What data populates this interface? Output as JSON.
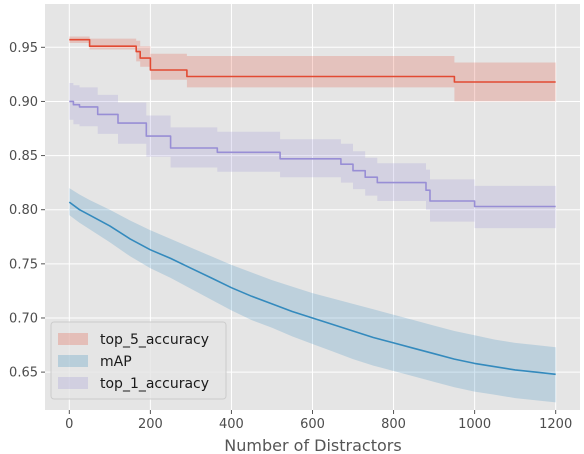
{
  "chart_data": {
    "type": "line",
    "title": "",
    "xlabel": "Number of Distractors",
    "ylabel": "",
    "xlim": [
      -60,
      1260
    ],
    "ylim": [
      0.615,
      0.99
    ],
    "x_ticks": [
      0,
      200,
      400,
      600,
      800,
      1000,
      1200
    ],
    "y_ticks": [
      0.65,
      0.7,
      0.75,
      0.8,
      0.85,
      0.9,
      0.95
    ],
    "x_tick_labels": [
      "0",
      "200",
      "400",
      "600",
      "800",
      "1000",
      "1200"
    ],
    "y_tick_labels": [
      "0.65",
      "0.70",
      "0.75",
      "0.80",
      "0.85",
      "0.90",
      "0.95"
    ],
    "grid": true,
    "legend_position": "lower-left",
    "series": [
      {
        "name": "top_5_accuracy",
        "color": "#e24a33",
        "step": true,
        "x": [
          0,
          50,
          165,
          175,
          200,
          290,
          950,
          1200
        ],
        "values": [
          0.957,
          0.951,
          0.946,
          0.94,
          0.929,
          0.923,
          0.918,
          0.918
        ],
        "lower": [
          0.954,
          0.948,
          0.937,
          0.932,
          0.92,
          0.913,
          0.9,
          0.9
        ],
        "upper": [
          0.96,
          0.958,
          0.956,
          0.951,
          0.944,
          0.942,
          0.936,
          0.936
        ]
      },
      {
        "name": "mAP",
        "color": "#348abd",
        "step": false,
        "x": [
          0,
          25,
          50,
          100,
          150,
          200,
          250,
          300,
          350,
          400,
          450,
          500,
          550,
          600,
          650,
          700,
          750,
          800,
          850,
          900,
          950,
          1000,
          1050,
          1100,
          1150,
          1200
        ],
        "values": [
          0.807,
          0.8,
          0.795,
          0.785,
          0.773,
          0.763,
          0.755,
          0.746,
          0.737,
          0.728,
          0.72,
          0.713,
          0.706,
          0.7,
          0.694,
          0.688,
          0.682,
          0.677,
          0.672,
          0.667,
          0.662,
          0.658,
          0.655,
          0.652,
          0.65,
          0.648
        ],
        "lower": [
          0.795,
          0.788,
          0.782,
          0.77,
          0.757,
          0.746,
          0.737,
          0.727,
          0.717,
          0.707,
          0.698,
          0.691,
          0.683,
          0.676,
          0.669,
          0.662,
          0.656,
          0.651,
          0.646,
          0.641,
          0.636,
          0.632,
          0.629,
          0.626,
          0.624,
          0.622
        ],
        "upper": [
          0.82,
          0.814,
          0.809,
          0.8,
          0.79,
          0.781,
          0.773,
          0.765,
          0.757,
          0.749,
          0.742,
          0.735,
          0.729,
          0.723,
          0.718,
          0.713,
          0.708,
          0.703,
          0.698,
          0.693,
          0.688,
          0.684,
          0.68,
          0.677,
          0.675,
          0.673
        ]
      },
      {
        "name": "top_1_accuracy",
        "color": "#988ed5",
        "step": true,
        "x": [
          0,
          10,
          25,
          70,
          120,
          190,
          250,
          365,
          520,
          670,
          700,
          730,
          760,
          880,
          890,
          1000,
          1200
        ],
        "values": [
          0.9,
          0.897,
          0.895,
          0.888,
          0.88,
          0.868,
          0.857,
          0.853,
          0.847,
          0.842,
          0.836,
          0.83,
          0.825,
          0.818,
          0.808,
          0.803,
          0.803
        ],
        "lower": [
          0.883,
          0.879,
          0.877,
          0.87,
          0.861,
          0.849,
          0.839,
          0.835,
          0.83,
          0.825,
          0.819,
          0.813,
          0.808,
          0.8,
          0.789,
          0.783,
          0.783
        ],
        "upper": [
          0.917,
          0.915,
          0.913,
          0.906,
          0.899,
          0.887,
          0.876,
          0.872,
          0.865,
          0.861,
          0.854,
          0.848,
          0.843,
          0.837,
          0.828,
          0.822,
          0.822
        ]
      }
    ]
  }
}
